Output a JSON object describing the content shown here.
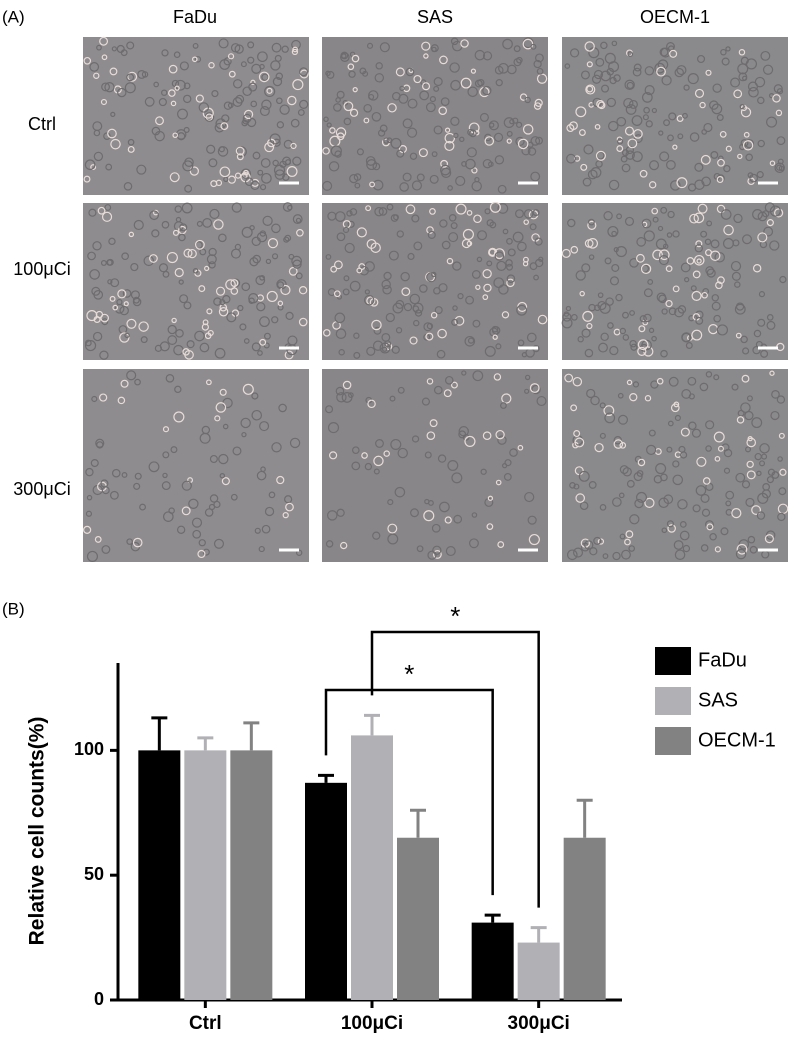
{
  "panel_a": {
    "label": "(A)",
    "columns": [
      "FaDu",
      "SAS",
      "OECM-1"
    ],
    "rows": [
      "Ctrl",
      "100μCi",
      "300μCi"
    ]
  },
  "chart_data": {
    "type": "bar",
    "panel_label": "(B)",
    "y_label": "Relative cell counts(%)",
    "categories": [
      "Ctrl",
      "100μCi",
      "300μCi"
    ],
    "series": [
      {
        "name": "FaDu",
        "color": "#000000",
        "values": [
          100,
          87,
          31
        ],
        "errors": [
          13,
          3,
          3
        ]
      },
      {
        "name": "SAS",
        "color": "#b1b1b5",
        "values": [
          100,
          106,
          23
        ],
        "errors": [
          5,
          8,
          6
        ]
      },
      {
        "name": "OECM-1",
        "color": "#828282",
        "values": [
          100,
          65,
          65
        ],
        "errors": [
          11,
          11,
          15
        ]
      }
    ],
    "ylim": [
      0,
      135
    ],
    "yticks": [
      0,
      50,
      100
    ],
    "legend": "right",
    "annotations": [
      "*",
      "*"
    ]
  }
}
